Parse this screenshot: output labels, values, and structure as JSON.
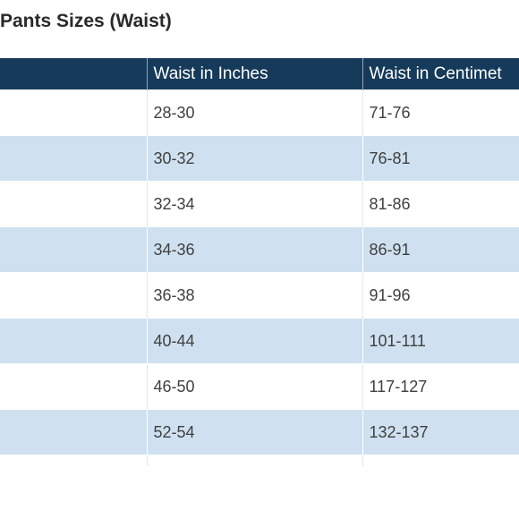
{
  "title": "Pants Sizes (Waist)",
  "table": {
    "headers": [
      "",
      "Waist in Inches",
      "Waist in Centimet"
    ],
    "rows": [
      [
        "",
        "28-30",
        "71-76"
      ],
      [
        "",
        "30-32",
        "76-81"
      ],
      [
        "",
        "32-34",
        "81-86"
      ],
      [
        "",
        "34-36",
        "86-91"
      ],
      [
        "",
        "36-38",
        "91-96"
      ],
      [
        "",
        "40-44",
        "101-111"
      ],
      [
        "",
        "46-50",
        "117-127"
      ],
      [
        "",
        "52-54",
        "132-137"
      ]
    ]
  },
  "colors": {
    "header_bg": "#163a5a",
    "stripe_bg": "#cfe1f0",
    "text": "#404040"
  }
}
